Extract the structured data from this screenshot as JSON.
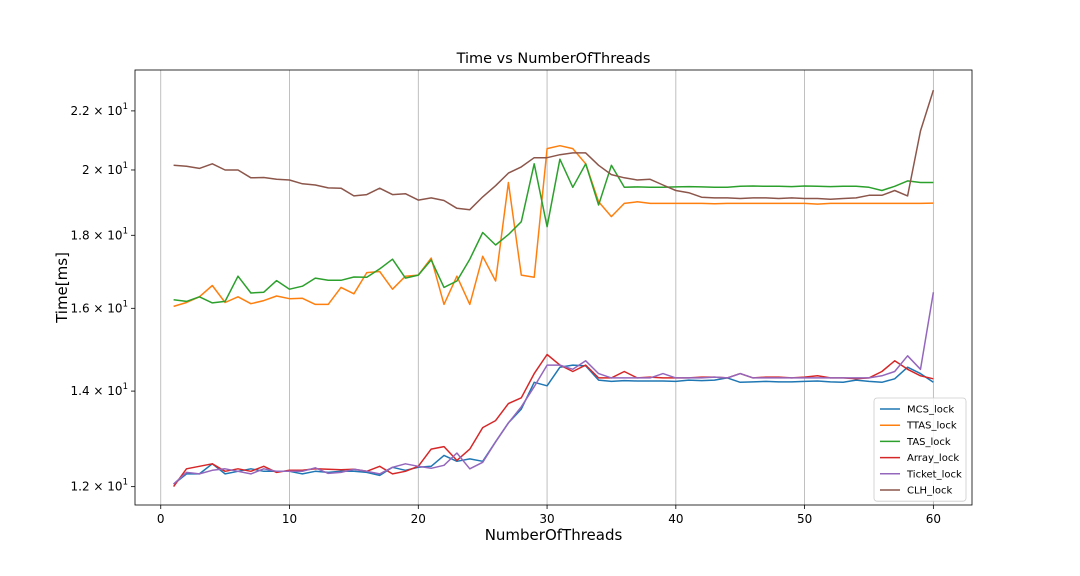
{
  "chart_data": {
    "type": "line",
    "title": "Time vs NumberOfThreads",
    "xlabel": "NumberOfThreads",
    "ylabel": "Time[ms]",
    "yscale": "log",
    "xlim": [
      -2,
      63
    ],
    "ylim": [
      11.65,
      23.5
    ],
    "grid": "vertical lines at x ticks",
    "legend_position": "lower right",
    "x_ticks": [
      0,
      10,
      20,
      30,
      40,
      50,
      60
    ],
    "x_tick_labels": [
      "0",
      "10",
      "20",
      "30",
      "40",
      "50",
      "60"
    ],
    "y_ticks": [
      12,
      14,
      16,
      18,
      20,
      22
    ],
    "y_tick_labels": [
      {
        "base": "1.2 × 10",
        "exp": "1"
      },
      {
        "base": "1.4 × 10",
        "exp": "1"
      },
      {
        "base": "1.6 × 10",
        "exp": "1"
      },
      {
        "base": "1.8 × 10",
        "exp": "1"
      },
      {
        "base": "2 × 10",
        "exp": "1"
      },
      {
        "base": "2.2 × 10",
        "exp": "1"
      }
    ],
    "x": [
      1,
      2,
      3,
      4,
      5,
      6,
      7,
      8,
      9,
      10,
      11,
      12,
      13,
      14,
      15,
      16,
      17,
      18,
      19,
      20,
      21,
      22,
      23,
      24,
      25,
      26,
      27,
      28,
      29,
      30,
      31,
      32,
      33,
      34,
      35,
      36,
      37,
      38,
      39,
      40,
      41,
      42,
      43,
      44,
      45,
      46,
      47,
      48,
      49,
      50,
      51,
      52,
      53,
      54,
      55,
      56,
      57,
      58,
      59,
      60
    ],
    "series": [
      {
        "name": "MCS_lock",
        "color": "#1f77b4",
        "values": [
          12.05,
          12.25,
          12.25,
          12.45,
          12.25,
          12.3,
          12.35,
          12.3,
          12.3,
          12.3,
          12.25,
          12.3,
          12.28,
          12.3,
          12.3,
          12.28,
          12.22,
          12.38,
          12.32,
          12.38,
          12.4,
          12.62,
          12.5,
          12.55,
          12.5,
          12.9,
          13.3,
          13.6,
          14.2,
          14.12,
          14.55,
          14.6,
          14.58,
          14.25,
          14.22,
          14.24,
          14.23,
          14.23,
          14.23,
          14.22,
          14.25,
          14.24,
          14.25,
          14.3,
          14.2,
          14.21,
          14.22,
          14.21,
          14.21,
          14.22,
          14.23,
          14.21,
          14.2,
          14.25,
          14.22,
          14.2,
          14.28,
          14.55,
          14.4,
          14.2
        ]
      },
      {
        "name": "TTAS_lock",
        "color": "#ff7f0e",
        "values": [
          16.05,
          16.15,
          16.3,
          16.6,
          16.15,
          16.3,
          16.12,
          16.2,
          16.32,
          16.25,
          16.26,
          16.1,
          16.1,
          16.55,
          16.38,
          16.95,
          16.98,
          16.5,
          16.85,
          16.88,
          17.35,
          16.1,
          16.85,
          16.1,
          17.4,
          16.72,
          19.6,
          16.88,
          16.82,
          20.7,
          20.8,
          20.7,
          20.2,
          19.0,
          18.55,
          18.95,
          19.0,
          18.95,
          18.95,
          18.95,
          18.95,
          18.95,
          18.94,
          18.95,
          18.95,
          18.95,
          18.95,
          18.95,
          18.95,
          18.95,
          18.93,
          18.95,
          18.95,
          18.95,
          18.95,
          18.95,
          18.95,
          18.95,
          18.95,
          18.96
        ]
      },
      {
        "name": "TAS_lock",
        "color": "#2ca02c",
        "values": [
          16.22,
          16.18,
          16.3,
          16.14,
          16.18,
          16.85,
          16.4,
          16.42,
          16.73,
          16.5,
          16.58,
          16.8,
          16.74,
          16.74,
          16.83,
          16.82,
          17.05,
          17.32,
          16.8,
          16.88,
          17.3,
          16.55,
          16.72,
          17.32,
          18.08,
          17.72,
          18.02,
          18.4,
          20.2,
          18.25,
          20.35,
          19.45,
          20.2,
          18.9,
          20.15,
          19.45,
          19.46,
          19.45,
          19.45,
          19.46,
          19.47,
          19.46,
          19.45,
          19.45,
          19.48,
          19.49,
          19.48,
          19.48,
          19.47,
          19.49,
          19.48,
          19.47,
          19.48,
          19.48,
          19.45,
          19.35,
          19.48,
          19.65,
          19.6,
          19.6
        ]
      },
      {
        "name": "Array_lock",
        "color": "#d62728",
        "values": [
          12.0,
          12.35,
          12.4,
          12.45,
          12.3,
          12.35,
          12.3,
          12.4,
          12.28,
          12.32,
          12.32,
          12.35,
          12.34,
          12.33,
          12.34,
          12.3,
          12.4,
          12.25,
          12.3,
          12.4,
          12.75,
          12.8,
          12.52,
          12.75,
          13.2,
          13.35,
          13.72,
          13.85,
          14.4,
          14.85,
          14.6,
          14.45,
          14.6,
          14.3,
          14.3,
          14.45,
          14.3,
          14.32,
          14.3,
          14.3,
          14.3,
          14.32,
          14.32,
          14.3,
          14.4,
          14.3,
          14.32,
          14.32,
          14.3,
          14.32,
          14.35,
          14.3,
          14.3,
          14.28,
          14.3,
          14.45,
          14.7,
          14.5,
          14.35,
          14.28
        ]
      },
      {
        "name": "Ticket_lock",
        "color": "#9467bd",
        "values": [
          12.05,
          12.28,
          12.25,
          12.32,
          12.35,
          12.3,
          12.25,
          12.35,
          12.3,
          12.3,
          12.3,
          12.37,
          12.26,
          12.28,
          12.34,
          12.3,
          12.25,
          12.38,
          12.45,
          12.4,
          12.36,
          12.42,
          12.67,
          12.35,
          12.48,
          12.9,
          13.3,
          13.65,
          14.1,
          14.6,
          14.6,
          14.5,
          14.7,
          14.4,
          14.3,
          14.3,
          14.3,
          14.3,
          14.4,
          14.3,
          14.3,
          14.3,
          14.32,
          14.3,
          14.4,
          14.3,
          14.3,
          14.3,
          14.3,
          14.3,
          14.3,
          14.3,
          14.3,
          14.3,
          14.3,
          14.35,
          14.45,
          14.82,
          14.5,
          16.42
        ]
      },
      {
        "name": "CLH_lock",
        "color": "#8c564b",
        "values": [
          20.15,
          20.12,
          20.05,
          20.2,
          20.0,
          20.0,
          19.75,
          19.76,
          19.7,
          19.68,
          19.56,
          19.52,
          19.43,
          19.42,
          19.18,
          19.22,
          19.42,
          19.22,
          19.25,
          19.05,
          19.12,
          19.04,
          18.8,
          18.76,
          19.15,
          19.5,
          19.9,
          20.1,
          20.4,
          20.4,
          20.5,
          20.56,
          20.56,
          20.15,
          19.85,
          19.75,
          19.68,
          19.7,
          19.52,
          19.35,
          19.28,
          19.14,
          19.12,
          19.12,
          19.1,
          19.12,
          19.12,
          19.1,
          19.12,
          19.1,
          19.1,
          19.08,
          19.1,
          19.12,
          19.2,
          19.2,
          19.35,
          19.18,
          21.3,
          22.75
        ]
      }
    ]
  }
}
